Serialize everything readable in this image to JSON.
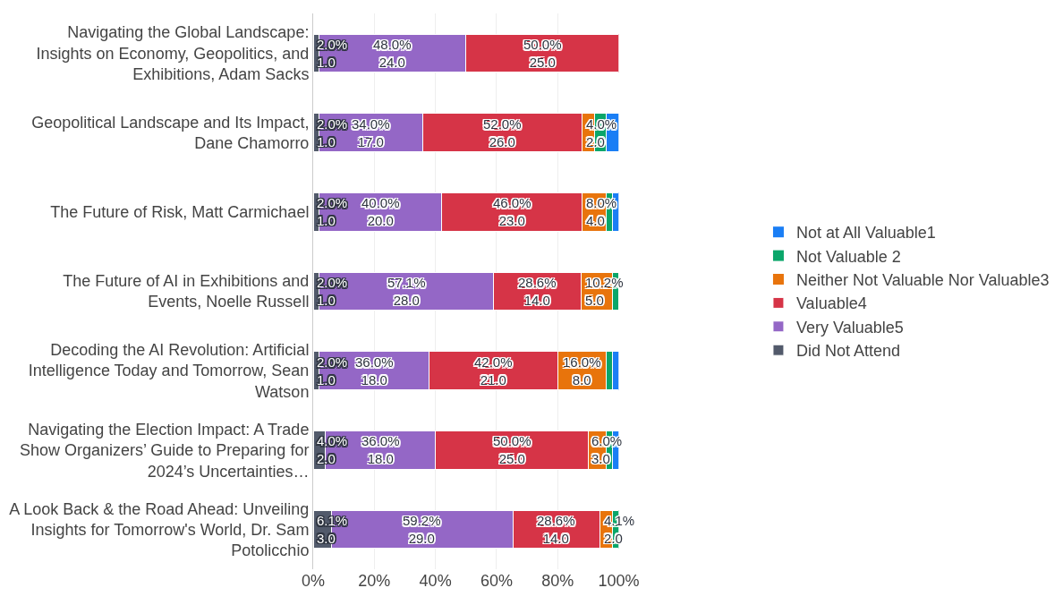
{
  "chart_data": {
    "type": "bar",
    "orientation": "horizontal",
    "stacked": true,
    "categories": [
      "Navigating the Global Landscape: Insights on Economy, Geopolitics, and Exhibitions, Adam Sacks",
      "Geopolitical Landscape and Its Impact, Dane Chamorro",
      "The Future of Risk, Matt Carmichael",
      "The Future of AI in Exhibitions and Events, Noelle Russell",
      "Decoding the AI Revolution: Artificial Intelligence Today and Tomorrow, Sean Watson",
      "Navigating the Election Impact: A Trade Show Organizers’ Guide to Preparing for 2024’s Uncertainties…",
      "A Look Back & the Road Ahead: Unveiling Insights for Tomorrow's World, Dr. Sam Potolicchio"
    ],
    "series": [
      {
        "name": "Did Not Attend",
        "color": "#525a6b",
        "values": [
          2.0,
          2.0,
          2.0,
          2.0,
          2.0,
          4.0,
          6.1
        ],
        "value_labels": [
          "2.0%\n1.0",
          "2.0%\n1.0",
          "2.0%\n1.0",
          "2.0%\n1.0",
          "2.0%\n1.0",
          "4.0%\n2.0",
          "6.1%\n3.0"
        ]
      },
      {
        "name": "Very Valuable5",
        "color": "#9467c6",
        "values": [
          48.0,
          34.0,
          40.0,
          57.1,
          36.0,
          36.0,
          59.2
        ],
        "value_labels": [
          "48.0%\n24.0",
          "34.0%\n17.0",
          "40.0%\n20.0",
          "57.1%\n28.0",
          "36.0%\n18.0",
          "36.0%\n18.0",
          "59.2%\n29.0"
        ]
      },
      {
        "name": "Valuable4",
        "color": "#d63447",
        "values": [
          50.0,
          52.0,
          46.0,
          28.6,
          42.0,
          50.0,
          28.6
        ],
        "value_labels": [
          "50.0%\n25.0",
          "52.0%\n26.0",
          "46.0%\n23.0",
          "28.6%\n14.0",
          "42.0%\n21.0",
          "50.0%\n25.0",
          "28.6%\n14.0"
        ]
      },
      {
        "name": "Neither Not Valuable Nor Valuable3",
        "color": "#e8740c",
        "values": [
          0,
          4.0,
          8.0,
          10.2,
          16.0,
          6.0,
          4.1
        ],
        "value_labels": [
          null,
          "4.0%\n2.0",
          "8.0%\n4.0",
          "10.2%\n5.0",
          "16.0%\n8.0",
          "6.0%\n3.0",
          "4.1%\n2.0"
        ]
      },
      {
        "name": "Not Valuable 2",
        "color": "#0aa66a",
        "values": [
          0,
          4.0,
          2.0,
          2.0,
          2.0,
          2.0,
          2.0
        ],
        "value_labels": [
          null,
          null,
          null,
          null,
          null,
          null,
          null
        ]
      },
      {
        "name": "Not at All Valuable1",
        "color": "#1a7ef5",
        "values": [
          0,
          4.0,
          2.0,
          0,
          2.0,
          2.0,
          0
        ],
        "value_labels": [
          null,
          null,
          null,
          null,
          null,
          null,
          null
        ]
      }
    ],
    "xlim": [
      0,
      100
    ],
    "xticks": [
      {
        "value": 0,
        "label": "0%"
      },
      {
        "value": 20,
        "label": "20%"
      },
      {
        "value": 40,
        "label": "40%"
      },
      {
        "value": 60,
        "label": "60%"
      },
      {
        "value": 80,
        "label": "80%"
      },
      {
        "value": 100,
        "label": "100%"
      }
    ],
    "grid": "x",
    "legend": "right"
  }
}
